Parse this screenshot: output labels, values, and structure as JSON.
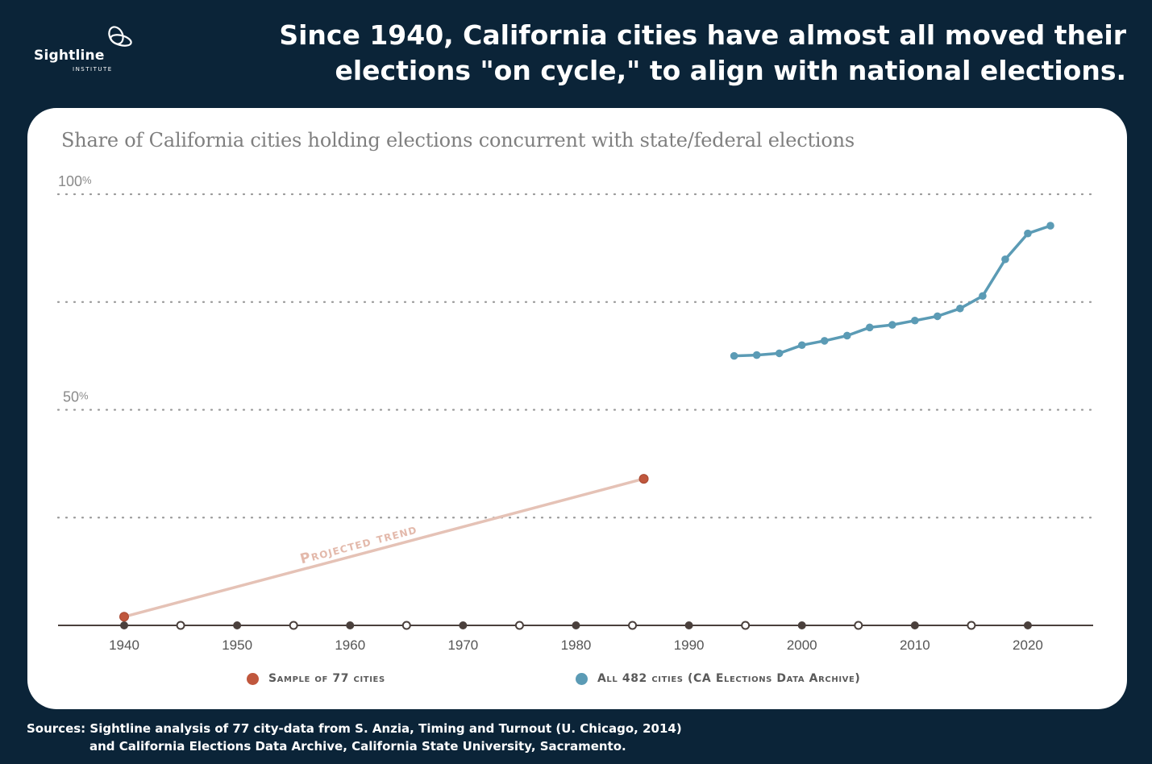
{
  "logo": {
    "name": "Sightline",
    "sub": "INSTITUTE"
  },
  "headline": "Since 1940, California cities have almost all moved their elections \"on cycle,\" to align with national elections.",
  "subtitle": "Share of California cities holding elections concurrent with state/federal elections",
  "colors": {
    "background": "#0b2438",
    "sample": "#c0573d",
    "all": "#5b9bb5",
    "trend": "#e5c2b6"
  },
  "chart_data": {
    "type": "line",
    "xlim": [
      1934,
      2025
    ],
    "ylim": [
      0,
      100
    ],
    "y_ticks": [
      {
        "value": 100,
        "label": "100",
        "unit": "%"
      },
      {
        "value": 50,
        "label": "50",
        "unit": "%"
      }
    ],
    "grid_y": [
      25,
      50,
      75,
      100
    ],
    "x_ticks": [
      1940,
      1950,
      1960,
      1970,
      1980,
      1990,
      2000,
      2010,
      2020
    ],
    "x_minor": [
      1945,
      1955,
      1965,
      1975,
      1985,
      1995,
      2005,
      2015
    ],
    "annotation": "Projected trend",
    "series": [
      {
        "name": "Sample of 77 cities",
        "color": "#c0573d",
        "points": [
          [
            1940,
            2
          ],
          [
            1986,
            34
          ]
        ],
        "connector": "projected"
      },
      {
        "name": "All 482 cities (CA Elections Data Archive)",
        "color": "#5b9bb5",
        "points": [
          [
            1994,
            62.5
          ],
          [
            1996,
            62.7
          ],
          [
            1998,
            63.1
          ],
          [
            2000,
            65.0
          ],
          [
            2002,
            66.0
          ],
          [
            2004,
            67.2
          ],
          [
            2006,
            69.1
          ],
          [
            2008,
            69.7
          ],
          [
            2010,
            70.7
          ],
          [
            2012,
            71.7
          ],
          [
            2014,
            73.5
          ],
          [
            2016,
            76.4
          ],
          [
            2018,
            84.9
          ],
          [
            2020,
            90.9
          ],
          [
            2022,
            92.7
          ]
        ]
      }
    ]
  },
  "sources": {
    "line1": "Sources: Sightline analysis of 77 city-data from S. Anzia, Timing and Turnout (U. Chicago, 2014)",
    "line2": "and California Elections Data Archive, California State University, Sacramento."
  }
}
